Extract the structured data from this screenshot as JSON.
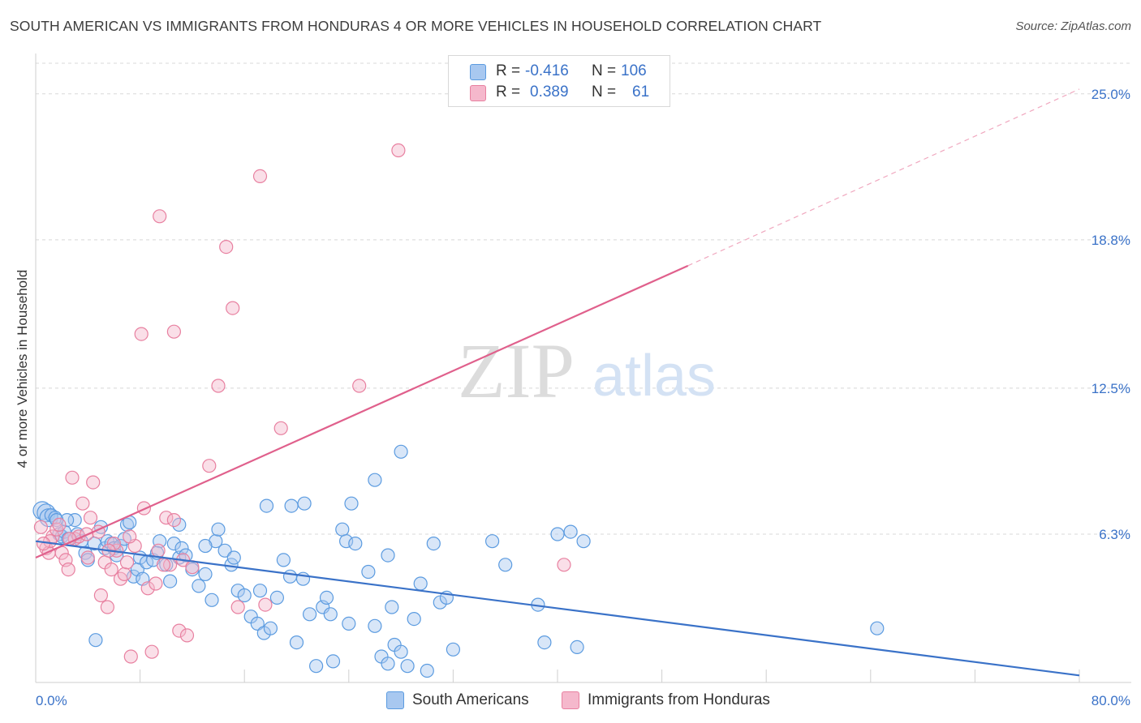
{
  "title": "SOUTH AMERICAN VS IMMIGRANTS FROM HONDURAS 4 OR MORE VEHICLES IN HOUSEHOLD CORRELATION CHART",
  "source": "Source: ZipAtlas.com",
  "watermark": {
    "zip": "ZIP",
    "atlas": "atlas"
  },
  "legend": {
    "rows": [
      {
        "r_label": "R =",
        "r_value": "-0.416",
        "n_label": "N =",
        "n_value": "106",
        "color": "#a8c8f0"
      },
      {
        "r_label": "R =",
        "r_value": "0.389",
        "n_label": "N =",
        "n_value": "61",
        "color": "#f5b8cc"
      }
    ]
  },
  "bottom_legend": [
    {
      "label": "South Americans",
      "color": "#a8c8f0"
    },
    {
      "label": "Immigrants from Honduras",
      "color": "#f5b8cc"
    }
  ],
  "chart_data": {
    "type": "scatter",
    "xlabel": "",
    "ylabel": "4 or more Vehicles in Household",
    "xlim": [
      0,
      80
    ],
    "ylim": [
      0,
      26.3
    ],
    "x_tick_labels": [
      "0.0%",
      "80.0%"
    ],
    "y_ticks": [
      6.3,
      12.5,
      18.8,
      25.0
    ],
    "y_tick_labels": [
      "6.3%",
      "12.5%",
      "18.8%",
      "25.0%"
    ],
    "grid": true,
    "series": [
      {
        "name": "South Americans",
        "color": "#5b9be0",
        "fill": "#a8c8f0",
        "trend": {
          "x0": 0,
          "y0": 6.0,
          "x1": 80,
          "y1": 0.3,
          "style": "solid",
          "color": "#3a72c8"
        },
        "points": [
          [
            0.5,
            7.3
          ],
          [
            0.8,
            7.2
          ],
          [
            1.0,
            7.0
          ],
          [
            1.2,
            7.1
          ],
          [
            1.5,
            7.0
          ],
          [
            1.8,
            6.3
          ],
          [
            2.0,
            6.2
          ],
          [
            2.2,
            6.4
          ],
          [
            2.5,
            6.1
          ],
          [
            3.0,
            6.9
          ],
          [
            3.2,
            6.3
          ],
          [
            3.5,
            6.0
          ],
          [
            3.8,
            5.5
          ],
          [
            4.0,
            5.2
          ],
          [
            4.5,
            5.9
          ],
          [
            5.0,
            6.6
          ],
          [
            5.3,
            5.7
          ],
          [
            5.5,
            6.0
          ],
          [
            5.8,
            5.9
          ],
          [
            6.0,
            5.7
          ],
          [
            6.5,
            5.8
          ],
          [
            6.8,
            6.1
          ],
          [
            7.0,
            6.7
          ],
          [
            7.2,
            6.8
          ],
          [
            7.5,
            4.5
          ],
          [
            7.8,
            4.8
          ],
          [
            8.0,
            5.3
          ],
          [
            8.2,
            4.4
          ],
          [
            8.5,
            5.1
          ],
          [
            9.0,
            5.2
          ],
          [
            9.5,
            6.0
          ],
          [
            10.0,
            5.0
          ],
          [
            10.3,
            4.3
          ],
          [
            10.6,
            5.9
          ],
          [
            11.0,
            5.3
          ],
          [
            11.2,
            5.7
          ],
          [
            11.5,
            5.4
          ],
          [
            12.0,
            4.8
          ],
          [
            12.5,
            4.1
          ],
          [
            13.0,
            4.6
          ],
          [
            13.5,
            3.5
          ],
          [
            13.8,
            6.0
          ],
          [
            14.0,
            6.5
          ],
          [
            14.5,
            5.6
          ],
          [
            15.0,
            5.0
          ],
          [
            15.5,
            3.9
          ],
          [
            16.0,
            3.7
          ],
          [
            16.5,
            2.8
          ],
          [
            17.0,
            2.5
          ],
          [
            17.2,
            3.9
          ],
          [
            17.5,
            2.1
          ],
          [
            18.0,
            2.3
          ],
          [
            18.5,
            3.6
          ],
          [
            19.0,
            5.2
          ],
          [
            19.5,
            4.5
          ],
          [
            20.0,
            1.7
          ],
          [
            20.5,
            4.4
          ],
          [
            21.0,
            2.9
          ],
          [
            21.5,
            0.7
          ],
          [
            22.0,
            3.2
          ],
          [
            22.3,
            3.6
          ],
          [
            22.6,
            2.9
          ],
          [
            22.8,
            0.9
          ],
          [
            23.5,
            6.5
          ],
          [
            23.8,
            6.0
          ],
          [
            24.0,
            2.5
          ],
          [
            24.5,
            5.9
          ],
          [
            25.5,
            4.7
          ],
          [
            26.0,
            2.4
          ],
          [
            26.5,
            1.1
          ],
          [
            27.0,
            0.8
          ],
          [
            27.3,
            3.2
          ],
          [
            27.5,
            1.6
          ],
          [
            28.0,
            1.3
          ],
          [
            28.5,
            0.7
          ],
          [
            29.0,
            2.7
          ],
          [
            29.5,
            4.2
          ],
          [
            30.0,
            0.5
          ],
          [
            30.5,
            5.9
          ],
          [
            31.0,
            3.4
          ],
          [
            31.5,
            3.6
          ],
          [
            32.0,
            1.4
          ],
          [
            35.0,
            6.0
          ],
          [
            36.0,
            5.0
          ],
          [
            38.5,
            3.3
          ],
          [
            39.0,
            1.7
          ],
          [
            40.0,
            6.3
          ],
          [
            41.0,
            6.4
          ],
          [
            41.5,
            1.5
          ],
          [
            42.0,
            6.0
          ],
          [
            28.0,
            9.8
          ],
          [
            27.0,
            5.4
          ],
          [
            26.0,
            8.6
          ],
          [
            24.2,
            7.6
          ],
          [
            20.6,
            7.6
          ],
          [
            19.6,
            7.5
          ],
          [
            17.7,
            7.5
          ],
          [
            11.0,
            6.7
          ],
          [
            13.0,
            5.8
          ],
          [
            15.2,
            5.3
          ],
          [
            4.6,
            1.8
          ],
          [
            64.5,
            2.3
          ],
          [
            2.4,
            6.9
          ],
          [
            1.6,
            6.9
          ],
          [
            9.3,
            5.5
          ],
          [
            6.2,
            5.4
          ]
        ]
      },
      {
        "name": "Immigrants from Honduras",
        "color": "#e880a0",
        "fill": "#f5b8cc",
        "trend": {
          "x0": 0,
          "y0": 5.3,
          "x1": 50,
          "y1": 17.7,
          "x_dash_end": 80,
          "y_dash_end": 25.2,
          "style": "solid-then-dashed",
          "color": "#e0608c"
        },
        "points": [
          [
            0.4,
            6.6
          ],
          [
            0.8,
            5.7
          ],
          [
            1.0,
            5.5
          ],
          [
            1.3,
            6.2
          ],
          [
            1.6,
            6.5
          ],
          [
            1.8,
            6.7
          ],
          [
            2.0,
            5.5
          ],
          [
            2.3,
            5.2
          ],
          [
            2.5,
            4.8
          ],
          [
            2.8,
            8.7
          ],
          [
            3.0,
            6.1
          ],
          [
            3.3,
            6.2
          ],
          [
            3.6,
            7.6
          ],
          [
            4.0,
            5.3
          ],
          [
            4.2,
            7.0
          ],
          [
            4.4,
            8.5
          ],
          [
            4.8,
            6.4
          ],
          [
            5.0,
            3.7
          ],
          [
            5.3,
            5.1
          ],
          [
            5.5,
            3.2
          ],
          [
            5.8,
            4.8
          ],
          [
            6.2,
            5.6
          ],
          [
            6.5,
            4.4
          ],
          [
            6.8,
            4.6
          ],
          [
            7.0,
            5.1
          ],
          [
            7.3,
            1.1
          ],
          [
            7.6,
            5.8
          ],
          [
            8.3,
            7.4
          ],
          [
            8.6,
            4.0
          ],
          [
            8.9,
            1.3
          ],
          [
            9.2,
            4.2
          ],
          [
            9.4,
            5.6
          ],
          [
            10.0,
            7.0
          ],
          [
            10.3,
            5.0
          ],
          [
            10.6,
            6.9
          ],
          [
            11.0,
            2.2
          ],
          [
            11.3,
            5.2
          ],
          [
            11.6,
            2.0
          ],
          [
            13.3,
            9.2
          ],
          [
            14.0,
            12.6
          ],
          [
            14.6,
            18.5
          ],
          [
            15.1,
            15.9
          ],
          [
            15.5,
            3.2
          ],
          [
            17.2,
            21.5
          ],
          [
            17.6,
            3.3
          ],
          [
            18.8,
            10.8
          ],
          [
            24.8,
            12.6
          ],
          [
            27.8,
            22.6
          ],
          [
            40.5,
            5.0
          ],
          [
            8.1,
            14.8
          ],
          [
            9.5,
            19.8
          ],
          [
            10.6,
            14.9
          ],
          [
            7.2,
            6.2
          ],
          [
            6.0,
            5.9
          ],
          [
            3.9,
            6.3
          ],
          [
            2.6,
            6.1
          ],
          [
            1.1,
            6.0
          ],
          [
            0.6,
            5.9
          ],
          [
            12.0,
            4.9
          ],
          [
            9.8,
            5.0
          ],
          [
            5.6,
            5.6
          ]
        ]
      }
    ]
  }
}
